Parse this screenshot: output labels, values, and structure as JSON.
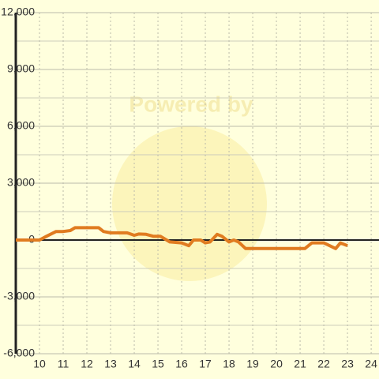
{
  "chart_data": {
    "type": "line",
    "watermark": "Powered by",
    "x": [
      9,
      10,
      10.3,
      10.7,
      11,
      11.3,
      11.5,
      12,
      12.5,
      12.7,
      13,
      13.7,
      14,
      14.2,
      14.5,
      14.8,
      15.1,
      15.5,
      16,
      16.3,
      16.5,
      16.8,
      17,
      17.2,
      17.5,
      17.7,
      18,
      18.2,
      18.4,
      18.7,
      19,
      21.2,
      21.5,
      22,
      22.5,
      22.7,
      23
    ],
    "series": [
      {
        "color": "#e07b20",
        "values": [
          0,
          0,
          200,
          450,
          450,
          500,
          650,
          650,
          650,
          450,
          380,
          380,
          250,
          320,
          300,
          200,
          200,
          -100,
          -150,
          -300,
          0,
          0,
          -150,
          -100,
          300,
          200,
          -100,
          0,
          -100,
          -450,
          -450,
          -450,
          -150,
          -150,
          -450,
          -150,
          -300
        ]
      }
    ],
    "xlim": [
      9,
      24.33
    ],
    "xticks": [
      10,
      11,
      12,
      13,
      14,
      15,
      16,
      17,
      18,
      19,
      20,
      21,
      22,
      23,
      24
    ],
    "ylim": [
      -6000,
      12000
    ],
    "yticks": [
      {
        "value": -6000,
        "label": "-6,000"
      },
      {
        "value": -3000,
        "label": "-3,000"
      },
      0,
      {
        "value": 3000,
        "label": "3,000"
      },
      {
        "value": 6000,
        "label": "6,000"
      },
      {
        "value": 9000,
        "label": "9,000"
      },
      {
        "value": 12000,
        "label": "12,000"
      }
    ],
    "yminor": [
      -4500,
      -1500,
      1500,
      4500,
      7500,
      10500
    ],
    "grid": true
  }
}
